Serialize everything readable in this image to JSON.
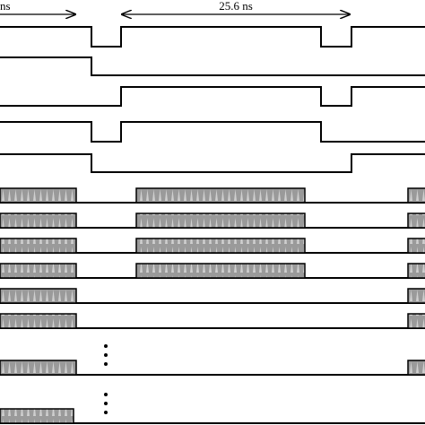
{
  "annotations": {
    "left_period": "ns",
    "period": "25.6 ns"
  }
}
